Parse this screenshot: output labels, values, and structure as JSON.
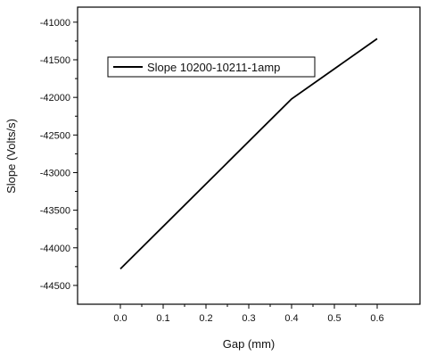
{
  "chart_data": {
    "type": "line",
    "title": "",
    "xlabel": "Gap (mm)",
    "ylabel": "Slope (Volts/s)",
    "xlim": [
      -0.1,
      0.7
    ],
    "ylim": [
      -44750,
      -40800
    ],
    "xticks": [
      0.0,
      0.1,
      0.2,
      0.3,
      0.4,
      0.5,
      0.6
    ],
    "xtick_labels": [
      "0.0",
      "0.1",
      "0.2",
      "0.3",
      "0.4",
      "0.5",
      "0.6"
    ],
    "yticks": [
      -44500,
      -44000,
      -43500,
      -43000,
      -42500,
      -42000,
      -41500,
      -41000
    ],
    "ytick_labels": [
      "-44500",
      "-44000",
      "-43500",
      "-43000",
      "-42500",
      "-42000",
      "-41500",
      "-41000"
    ],
    "grid": false,
    "legend_position": "top-left",
    "series": [
      {
        "name": "Slope 10200-10211-1amp",
        "color": "#000000",
        "x": [
          0.0,
          0.4,
          0.6
        ],
        "y": [
          -44280,
          -42020,
          -41220
        ]
      }
    ]
  }
}
